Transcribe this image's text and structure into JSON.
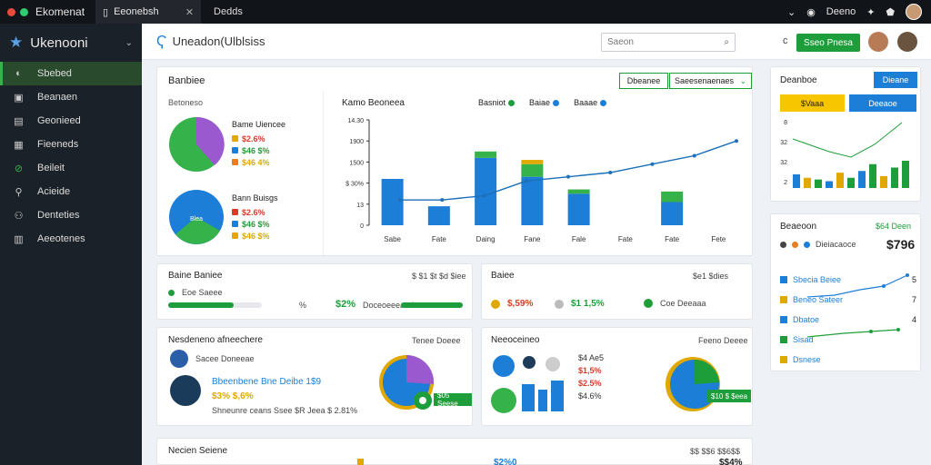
{
  "app": {
    "title": "Ekomenat",
    "tab_label": "Eeonebsh",
    "tab2_label": "Dedds",
    "top_right_label": "Deeno"
  },
  "sidebar": {
    "brand": "Ukenooni",
    "items": [
      {
        "label": "Sbebed",
        "icon": "dashboard-icon"
      },
      {
        "label": "Beanaen",
        "icon": "box-icon"
      },
      {
        "label": "Geonieed",
        "icon": "docs-icon"
      },
      {
        "label": "Fieeneds",
        "icon": "grid-icon"
      },
      {
        "label": "Beileit",
        "icon": "link-icon"
      },
      {
        "label": "Acieide",
        "icon": "search-icon"
      },
      {
        "label": "Denteties",
        "icon": "users-icon"
      },
      {
        "label": "Aeeotenes",
        "icon": "apps-icon"
      }
    ]
  },
  "header": {
    "title": "Uneadon(Ulblsiss",
    "search_placeholder": "Saeon",
    "sync": "c",
    "button": "Sseo Pnesa"
  },
  "summary": {
    "title": "Banbiee",
    "dropdown1": "Dbeanee",
    "dropdown2": "Saeesenaenaes",
    "sub": "Betoneso",
    "pie1": {
      "title": "Bame Uiencee",
      "items": [
        {
          "label": "$2.6%",
          "color": "#e0a800"
        },
        {
          "label": "$46 $%",
          "color": "#1c7ed6"
        },
        {
          "label": "$46 4%",
          "color": "#e67e22"
        }
      ]
    },
    "pie2": {
      "title": "Bann Buisgs",
      "center": "Blea",
      "items": [
        {
          "label": "$2.6%",
          "color": "#d43d2a"
        },
        {
          "label": "$46 $%",
          "color": "#1c7ed6"
        },
        {
          "label": "$46 $%",
          "color": "#e0a800"
        }
      ]
    }
  },
  "main_chart": {
    "title": "Kamo Beoneea",
    "legend": [
      {
        "label": "Basniot",
        "color": "#1e9e3a"
      },
      {
        "label": "Baiae",
        "color": "#1c7ed6"
      },
      {
        "label": "Baaae",
        "color": "#1c7ed6"
      }
    ]
  },
  "chart_data": {
    "type": "bar",
    "categories": [
      "Sabe",
      "Fate",
      "Daing",
      "Fane",
      "Fale",
      "Fate",
      "Fate",
      "Fete"
    ],
    "y_tick_labels": [
      "14.30",
      "1900",
      "1500",
      "$ 30%",
      "13",
      "0"
    ],
    "ylim": [
      0,
      5
    ],
    "series": [
      {
        "values": [
          2.2,
          0.9,
          3.2,
          2.3,
          1.5,
          0,
          1.1,
          0
        ],
        "color": "#1c7ed6"
      },
      {
        "values": [
          0,
          0,
          0.3,
          0.6,
          0.2,
          0,
          0.5,
          0
        ],
        "color": "#36b24a"
      },
      {
        "values": [
          0,
          0,
          0,
          0.2,
          0,
          0,
          0,
          0
        ],
        "color": "#e0a800"
      }
    ],
    "line": [
      1.2,
      1.2,
      1.4,
      2.1,
      2.3,
      2.5,
      2.9,
      3.3,
      4.0
    ]
  },
  "right_panel": {
    "title": "Deanboe",
    "button": "Dieane",
    "yellow_button": "$Vaaa",
    "blue_button": "Deeaoe",
    "mini_bars": [
      {
        "values": [
          0.8,
          0.6,
          0.5,
          0.4,
          0.9,
          0.6,
          1.0,
          1.4,
          0.7,
          1.2,
          1.6
        ]
      },
      {
        "values": [
          0.5,
          0.4,
          0.3,
          0.3,
          0.6,
          0.4,
          0.6,
          0.9,
          0.5,
          0.8,
          1.0
        ]
      }
    ],
    "mini_tick_labels": [
      "8",
      "32",
      "32",
      "2"
    ]
  },
  "stats_card": {
    "title": "Beaeoon",
    "badge": "$64 Deen",
    "value_label": "Dieiacaoce",
    "value": "$796",
    "rows": [
      {
        "label": "Sbecia Beiee",
        "value": "5"
      },
      {
        "label": "Beneo Sateer",
        "value": "7"
      },
      {
        "label": "Dbatoe",
        "value": "4"
      },
      {
        "label": "Sisad",
        "value": ""
      },
      {
        "label": "Dsnese",
        "value": ""
      }
    ]
  },
  "mid1": {
    "title": "Baine Baniee",
    "right": "$ $1 $t $d $iee",
    "bar1_label": "Eoe Saeee",
    "bar_value": "$2%",
    "bar2_label": "Doceoeeeaed"
  },
  "mid2": {
    "title": "Baiee",
    "right": "$e1 $dies",
    "items": [
      "$,59%",
      "$1 1,5%",
      "Coe Deeaaa"
    ]
  },
  "lower1": {
    "title": "Nesdeneno afneechere",
    "right": "Tenee Doeee",
    "line1": "Sacee Doneeae",
    "highlight": "Bbeenbene Bne Deibe 1$9",
    "line3": "$3% $,6%",
    "line4": "Shneunre ceans Ssee $R Jeea $ 2.81%",
    "badge": "$05 Seese"
  },
  "lower2": {
    "title": "Neeoceineo",
    "right": "Feeno Deeee",
    "vals": [
      "$4 Ae5",
      "$1,5%",
      "$2.5%",
      "$4.6%"
    ],
    "badge": "$10 $ $eea"
  },
  "bottom": {
    "title": "Necien Seiene",
    "right": "$$ $$6 $$6$$",
    "mid_value": "$2%0",
    "right_value": "$$4%"
  }
}
